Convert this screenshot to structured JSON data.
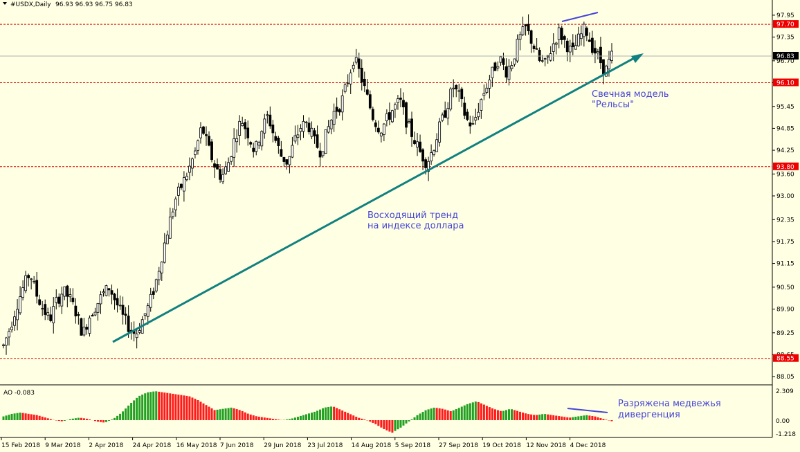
{
  "header": {
    "symbol": "#USDX,Daily",
    "ohlc": "96.93 96.93 96.75 96.83"
  },
  "indicator": {
    "label": "AO -0.083",
    "ticks": [
      "2.309",
      "0.00",
      "-1.218"
    ],
    "up_color": "#22a022",
    "down_color": "#ff1a1a"
  },
  "annotations": {
    "trend": [
      "Восходящий тренд",
      "на индексе доллара"
    ],
    "rails": [
      "Свечная модель",
      "\"Рельсы\""
    ],
    "divergence": [
      "Разряжена медвежья",
      "дивергенция"
    ]
  },
  "levels": [
    {
      "value": 97.7,
      "label": "97.70"
    },
    {
      "value": 96.1,
      "label": "96.10"
    },
    {
      "value": 93.8,
      "label": "93.80"
    },
    {
      "value": 88.55,
      "label": "88.55"
    }
  ],
  "current_price": "96.83",
  "colors": {
    "background": "#ffffe3",
    "level": "#dd0000",
    "trendline": "#108080",
    "annotation": "#4545d8"
  },
  "chart_data": {
    "type": "candlestick",
    "ylim": [
      87.9,
      98.1
    ],
    "yticks": [
      "97.95",
      "97.35",
      "96.70",
      "96.10",
      "95.45",
      "94.85",
      "94.25",
      "93.60",
      "93.00",
      "92.35",
      "91.75",
      "91.15",
      "90.50",
      "89.90",
      "89.25",
      "88.65",
      "88.05"
    ],
    "xlabels": [
      "15 Feb 2018",
      "9 Mar 2018",
      "2 Apr 2018",
      "24 Apr 2018",
      "16 May 2018",
      "7 Jun 2018",
      "29 Jun 2018",
      "23 Jul 2018",
      "14 Aug 2018",
      "5 Sep 2018",
      "27 Sep 2018",
      "19 Oct 2018",
      "12 Nov 2018",
      "4 Dec 2018"
    ],
    "close_path": [
      88.9,
      89.4,
      90.0,
      90.5,
      90.9,
      90.3,
      89.9,
      89.6,
      90.1,
      90.4,
      90.2,
      89.8,
      89.2,
      89.7,
      90.0,
      90.3,
      90.5,
      90.1,
      89.7,
      89.4,
      89.2,
      89.6,
      90.0,
      90.6,
      91.4,
      92.2,
      92.9,
      93.3,
      93.7,
      94.2,
      94.9,
      94.3,
      93.8,
      93.5,
      93.9,
      94.6,
      95.1,
      94.7,
      94.2,
      94.8,
      95.2,
      94.6,
      94.1,
      93.9,
      94.5,
      94.9,
      95.0,
      94.5,
      94.2,
      94.8,
      95.3,
      95.5,
      96.1,
      96.8,
      96.3,
      95.7,
      95.1,
      94.8,
      95.1,
      95.4,
      95.6,
      95.0,
      94.6,
      94.2,
      93.9,
      94.3,
      94.9,
      95.4,
      96.0,
      95.7,
      95.1,
      94.9,
      95.5,
      96.0,
      96.4,
      96.8,
      96.4,
      96.7,
      97.3,
      97.6,
      97.2,
      96.7,
      96.6,
      97.1,
      97.5,
      97.2,
      96.9,
      97.3,
      97.6,
      97.1,
      96.8,
      96.4,
      96.83
    ],
    "ao_path": [
      0.3,
      0.5,
      0.6,
      0.5,
      0.4,
      0.2,
      0.0,
      -0.1,
      0.1,
      0.2,
      0.1,
      -0.1,
      -0.2,
      0.1,
      0.6,
      1.3,
      1.9,
      2.2,
      2.3,
      2.2,
      2.1,
      2.0,
      1.9,
      1.6,
      1.2,
      0.8,
      0.9,
      1.0,
      0.8,
      0.5,
      0.3,
      0.2,
      0.1,
      0.0,
      0.1,
      0.3,
      0.5,
      0.7,
      1.0,
      1.1,
      0.8,
      0.5,
      0.2,
      0.0,
      -0.3,
      -0.7,
      -1.0,
      -0.6,
      -0.1,
      0.4,
      0.8,
      1.0,
      0.9,
      0.7,
      1.0,
      1.3,
      1.5,
      1.2,
      0.9,
      0.7,
      0.9,
      0.7,
      0.5,
      0.4,
      0.5,
      0.4,
      0.3,
      0.2,
      0.3,
      0.4,
      0.3,
      0.1,
      -0.083
    ]
  }
}
